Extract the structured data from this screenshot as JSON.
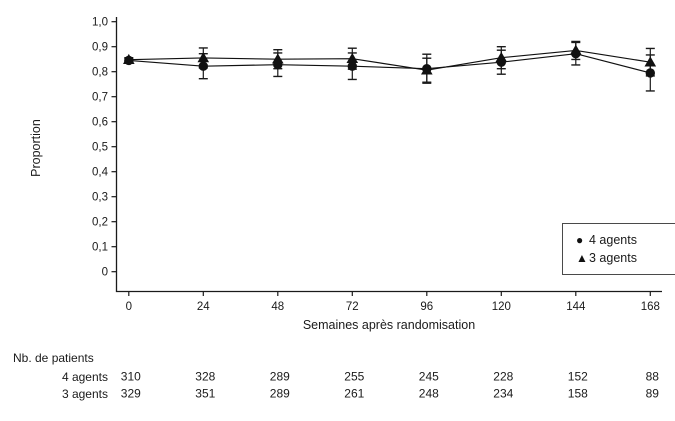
{
  "figure_colors": {
    "ink": "#1a1a1a",
    "legend_border": "#4a4a4a",
    "background": "#ffffff"
  },
  "legend": {
    "items": [
      {
        "marker": "circle-marker-icon",
        "glyph": "●",
        "label": "4 agents"
      },
      {
        "marker": "triangle-marker-icon",
        "glyph": "▲",
        "label": "3 agents"
      }
    ]
  },
  "patients_table": {
    "title": "Nb. de patients",
    "rows": [
      {
        "label": "4 agents",
        "counts": [
          310,
          328,
          289,
          255,
          245,
          228,
          152,
          88
        ]
      },
      {
        "label": "3 agents",
        "counts": [
          329,
          351,
          289,
          261,
          248,
          234,
          158,
          89
        ]
      }
    ]
  },
  "chart_data": {
    "type": "line",
    "title": "",
    "xlabel": "Semaines après randomisation",
    "ylabel": "Proportion",
    "x": [
      0,
      24,
      48,
      72,
      96,
      120,
      144,
      168
    ],
    "x_tick_labels": [
      "0",
      "24",
      "48",
      "72",
      "96",
      "120",
      "144",
      "168"
    ],
    "y_tick_labels": [
      "1,0",
      "0,9",
      "0,8",
      "0,7",
      "0,6",
      "0,5",
      "0,4",
      "0,3",
      "0,2",
      "0,1",
      "0"
    ],
    "y_tick_values": [
      1.0,
      0.9,
      0.8,
      0.7,
      0.6,
      0.5,
      0.4,
      0.3,
      0.2,
      0.1,
      0
    ],
    "xlim": [
      0,
      168
    ],
    "ylim": [
      0,
      1.0
    ],
    "grid": false,
    "legend_position": "lower right",
    "error_bars": true,
    "series": [
      {
        "name": "4 agents",
        "marker": "circle",
        "color": "#111111",
        "values": [
          0.845,
          0.822,
          0.828,
          0.822,
          0.812,
          0.838,
          0.872,
          0.795
        ],
        "errors": [
          0.008,
          0.05,
          0.047,
          0.053,
          0.058,
          0.048,
          0.045,
          0.072
        ]
      },
      {
        "name": "3 agents",
        "marker": "triangle",
        "color": "#111111",
        "values": [
          0.848,
          0.855,
          0.85,
          0.852,
          0.806,
          0.856,
          0.885,
          0.838
        ],
        "errors": [
          0.008,
          0.04,
          0.038,
          0.042,
          0.048,
          0.044,
          0.036,
          0.055
        ]
      }
    ]
  }
}
